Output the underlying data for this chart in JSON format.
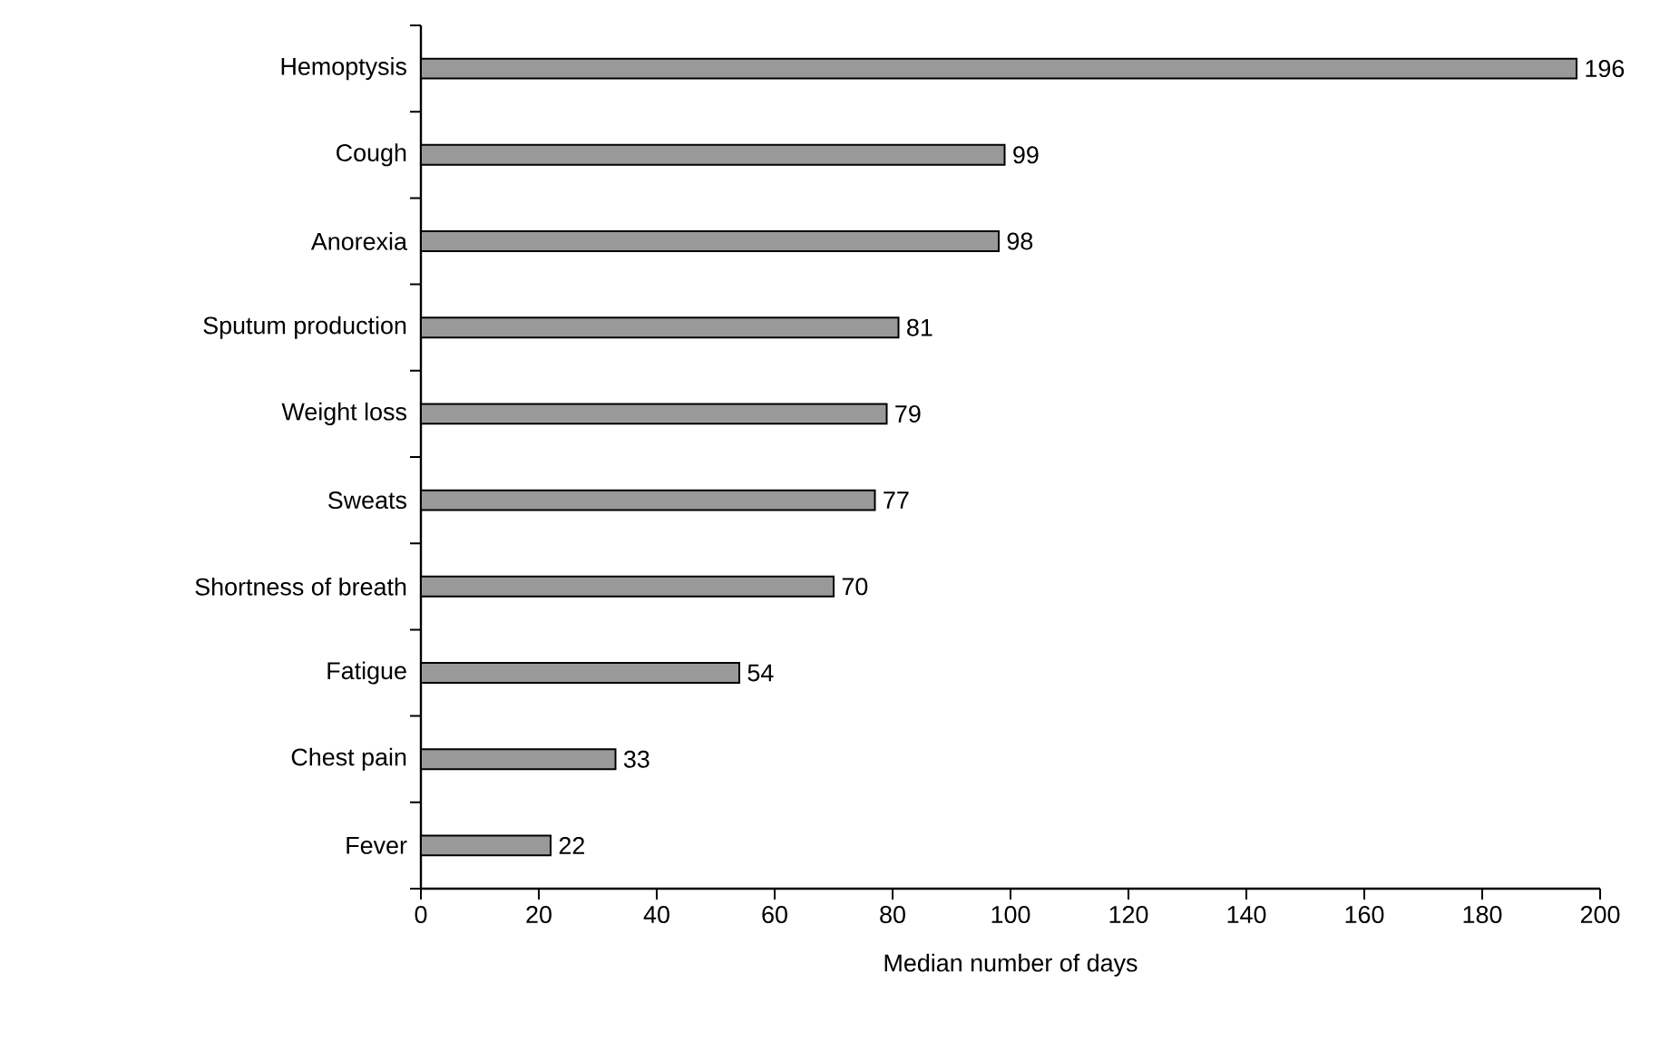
{
  "chart_data": {
    "type": "bar",
    "orientation": "horizontal",
    "xlabel": "Median number of days",
    "categories": [
      "Hemoptysis",
      "Cough",
      "Anorexia",
      "Sputum production",
      "Weight loss",
      "Sweats",
      "Shortness of breath",
      "Fatigue",
      "Chest pain",
      "Fever"
    ],
    "values": [
      196,
      99,
      98,
      81,
      79,
      77,
      70,
      54,
      33,
      22
    ],
    "color": "#999999",
    "xlim": [
      0,
      200
    ],
    "xticks": [
      0,
      20,
      40,
      60,
      80,
      100,
      120,
      140,
      160,
      180,
      200
    ],
    "data_labels": true
  }
}
